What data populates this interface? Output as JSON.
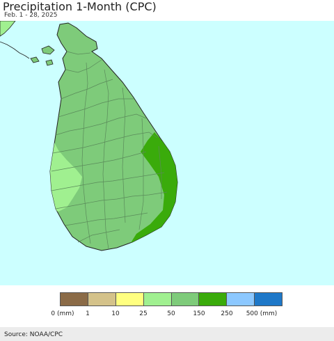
{
  "header": {
    "title": "Precipitation 1-Month (CPC)",
    "date_range": "Feb. 1 - 28, 2025"
  },
  "map": {
    "background_color": "#ccffff",
    "base_land_color": "#7ecb7a",
    "zones": [
      {
        "category": "25–50",
        "color": "#a0f090",
        "area": "west coast (Puttalam–Colombo)"
      },
      {
        "category": "150–250",
        "color": "#3aab0b",
        "area": "east and southeast coast"
      }
    ]
  },
  "legend": {
    "colors": [
      "#8b6b47",
      "#d4c28a",
      "#ffff80",
      "#a0f090",
      "#7ecb7a",
      "#3aab0b",
      "#8cc8ff",
      "#1e78c8"
    ],
    "labels": [
      "0 (mm)",
      "1",
      "10",
      "25",
      "50",
      "150",
      "250",
      "500 (mm)"
    ]
  },
  "footer": {
    "source": "Source: NOAA/CPC"
  }
}
